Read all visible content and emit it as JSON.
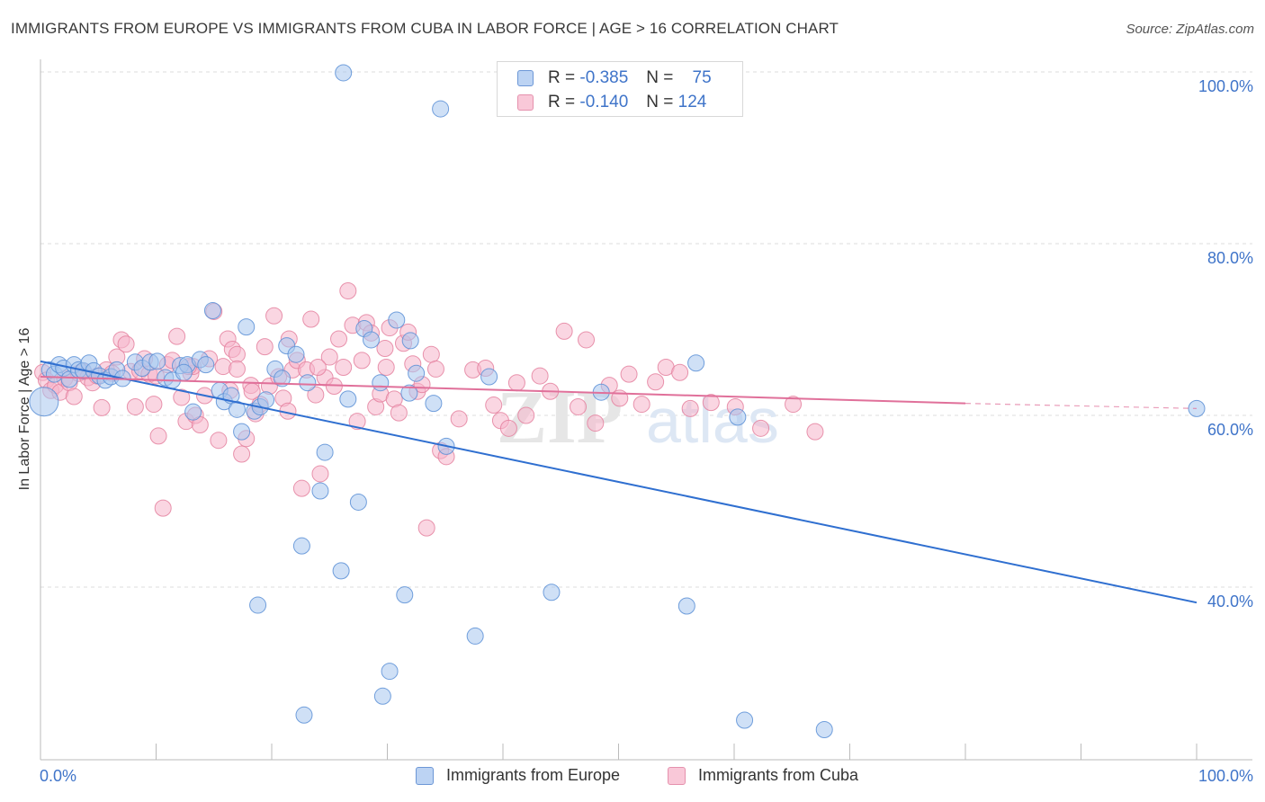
{
  "header": {
    "title": "IMMIGRANTS FROM EUROPE VS IMMIGRANTS FROM CUBA IN LABOR FORCE | AGE > 16 CORRELATION CHART",
    "source": "Source: ZipAtlas.com"
  },
  "watermark": "ZIPatlas",
  "colors": {
    "europe_fill": "#a8c6ef",
    "europe_stroke": "#5b8fd6",
    "europe_line": "#2f6fd0",
    "cuba_fill": "#f6b5cb",
    "cuba_stroke": "#e4819f",
    "cuba_line": "#e0709a",
    "axis_label": "#3f74c9"
  },
  "legend": {
    "rows": [
      {
        "r_label": "R =",
        "r_value": "-0.385",
        "n_label": "N =",
        "n_value": "75"
      },
      {
        "r_label": "R =",
        "r_value": "-0.140",
        "n_label": "N =",
        "n_value": "124"
      }
    ]
  },
  "chart_data": {
    "type": "scatter",
    "title": "IMMIGRANTS FROM EUROPE VS IMMIGRANTS FROM CUBA IN LABOR FORCE | AGE > 16 CORRELATION CHART",
    "xlabel": "",
    "ylabel": "In Labor Force | Age > 16",
    "xlim": [
      0,
      100
    ],
    "ylim": [
      22,
      102
    ],
    "x_tick_labels": [
      "0.0%",
      "100.0%"
    ],
    "y_ticks": [
      40,
      60,
      80,
      100
    ],
    "y_tick_labels": [
      "40.0%",
      "60.0%",
      "80.0%",
      "100.0%"
    ],
    "grid": "horizontal dashed",
    "legend_position": "bottom-center",
    "series": [
      {
        "name": "Immigrants from Europe",
        "R": -0.385,
        "N": 75,
        "trend": {
          "x": [
            0,
            100
          ],
          "y": [
            66.3,
            38.2
          ]
        },
        "points": [
          [
            0.3,
            61.6
          ],
          [
            0.8,
            65.3
          ],
          [
            1.2,
            64.8
          ],
          [
            1.6,
            65.9
          ],
          [
            2.0,
            65.5
          ],
          [
            2.5,
            64.2
          ],
          [
            2.9,
            65.9
          ],
          [
            3.3,
            65.3
          ],
          [
            3.7,
            65.2
          ],
          [
            4.2,
            66.1
          ],
          [
            4.6,
            65.2
          ],
          [
            5.1,
            64.6
          ],
          [
            5.6,
            64.1
          ],
          [
            6.1,
            64.5
          ],
          [
            6.6,
            65.3
          ],
          [
            7.1,
            64.3
          ],
          [
            8.2,
            66.2
          ],
          [
            8.8,
            65.5
          ],
          [
            9.5,
            66.2
          ],
          [
            10.1,
            66.3
          ],
          [
            10.8,
            64.4
          ],
          [
            11.4,
            64.1
          ],
          [
            12.1,
            65.8
          ],
          [
            12.7,
            65.9
          ],
          [
            13.2,
            60.4
          ],
          [
            13.8,
            66.5
          ],
          [
            14.3,
            65.9
          ],
          [
            14.9,
            72.2
          ],
          [
            15.5,
            62.9
          ],
          [
            15.9,
            61.6
          ],
          [
            16.5,
            62.3
          ],
          [
            17.0,
            60.7
          ],
          [
            17.4,
            58.1
          ],
          [
            17.8,
            70.3
          ],
          [
            18.5,
            60.5
          ],
          [
            19.0,
            61.0
          ],
          [
            19.5,
            61.8
          ],
          [
            20.3,
            65.4
          ],
          [
            20.9,
            64.3
          ],
          [
            21.3,
            68.1
          ],
          [
            22.1,
            67.1
          ],
          [
            23.1,
            63.8
          ],
          [
            24.2,
            51.2
          ],
          [
            24.6,
            55.7
          ],
          [
            26.2,
            99.9
          ],
          [
            26.6,
            61.9
          ],
          [
            27.5,
            49.9
          ],
          [
            28.0,
            70.1
          ],
          [
            28.6,
            68.8
          ],
          [
            29.4,
            63.8
          ],
          [
            30.8,
            71.1
          ],
          [
            32.0,
            68.7
          ],
          [
            32.5,
            64.9
          ],
          [
            31.9,
            62.6
          ],
          [
            34.0,
            61.4
          ],
          [
            34.6,
            95.7
          ],
          [
            35.1,
            56.4
          ],
          [
            22.6,
            44.8
          ],
          [
            26.0,
            41.9
          ],
          [
            31.5,
            39.1
          ],
          [
            18.8,
            37.9
          ],
          [
            37.6,
            34.3
          ],
          [
            30.2,
            30.2
          ],
          [
            29.6,
            27.3
          ],
          [
            22.8,
            25.1
          ],
          [
            44.2,
            39.4
          ],
          [
            55.9,
            37.8
          ],
          [
            56.7,
            66.1
          ],
          [
            60.3,
            59.8
          ],
          [
            60.9,
            24.5
          ],
          [
            67.8,
            23.4
          ],
          [
            100.0,
            60.8
          ],
          [
            48.5,
            62.7
          ],
          [
            38.8,
            64.5
          ],
          [
            12.4,
            65.0
          ]
        ]
      },
      {
        "name": "Immigrants from Cuba",
        "R": -0.14,
        "N": 124,
        "trend": {
          "x": [
            0,
            80,
            100
          ],
          "y": [
            64.5,
            61.4,
            60.8
          ]
        },
        "points": [
          [
            0.2,
            65.0
          ],
          [
            0.5,
            64.1
          ],
          [
            0.9,
            62.9
          ],
          [
            1.3,
            63.5
          ],
          [
            1.7,
            62.7
          ],
          [
            2.1,
            64.3
          ],
          [
            2.5,
            63.8
          ],
          [
            2.9,
            62.2
          ],
          [
            3.3,
            64.9
          ],
          [
            3.7,
            65.1
          ],
          [
            4.1,
            64.4
          ],
          [
            4.5,
            63.8
          ],
          [
            4.9,
            64.6
          ],
          [
            5.3,
            60.9
          ],
          [
            5.7,
            65.3
          ],
          [
            6.2,
            64.9
          ],
          [
            6.6,
            66.8
          ],
          [
            7.0,
            68.8
          ],
          [
            7.4,
            68.3
          ],
          [
            7.8,
            65.1
          ],
          [
            8.2,
            61.0
          ],
          [
            8.6,
            65.2
          ],
          [
            9.0,
            66.6
          ],
          [
            9.4,
            64.8
          ],
          [
            9.8,
            61.3
          ],
          [
            10.2,
            57.6
          ],
          [
            10.6,
            49.2
          ],
          [
            11.0,
            65.9
          ],
          [
            11.4,
            66.4
          ],
          [
            11.8,
            69.2
          ],
          [
            12.2,
            62.1
          ],
          [
            12.6,
            59.3
          ],
          [
            13.0,
            64.9
          ],
          [
            13.4,
            60.0
          ],
          [
            13.8,
            58.9
          ],
          [
            14.2,
            62.3
          ],
          [
            14.6,
            66.6
          ],
          [
            15.0,
            72.1
          ],
          [
            15.4,
            57.1
          ],
          [
            15.8,
            65.7
          ],
          [
            16.2,
            68.9
          ],
          [
            16.6,
            67.7
          ],
          [
            17.0,
            67.1
          ],
          [
            17.4,
            55.5
          ],
          [
            17.8,
            57.3
          ],
          [
            18.2,
            63.5
          ],
          [
            18.6,
            60.2
          ],
          [
            19.0,
            61.3
          ],
          [
            19.4,
            68.0
          ],
          [
            19.8,
            63.4
          ],
          [
            20.2,
            71.6
          ],
          [
            20.6,
            64.5
          ],
          [
            21.0,
            62.0
          ],
          [
            21.4,
            60.5
          ],
          [
            21.8,
            65.3
          ],
          [
            22.2,
            66.4
          ],
          [
            22.6,
            51.5
          ],
          [
            23.0,
            65.3
          ],
          [
            23.4,
            71.2
          ],
          [
            23.8,
            62.4
          ],
          [
            24.2,
            53.2
          ],
          [
            24.6,
            64.4
          ],
          [
            25.0,
            66.8
          ],
          [
            25.4,
            63.4
          ],
          [
            25.8,
            68.9
          ],
          [
            26.2,
            65.6
          ],
          [
            26.6,
            74.5
          ],
          [
            27.0,
            70.5
          ],
          [
            27.4,
            59.3
          ],
          [
            27.8,
            66.4
          ],
          [
            28.2,
            70.8
          ],
          [
            28.6,
            69.6
          ],
          [
            29.0,
            61.0
          ],
          [
            29.4,
            62.5
          ],
          [
            29.8,
            67.8
          ],
          [
            30.2,
            70.2
          ],
          [
            30.6,
            61.9
          ],
          [
            31.0,
            60.3
          ],
          [
            31.4,
            68.4
          ],
          [
            31.8,
            69.7
          ],
          [
            32.2,
            66.0
          ],
          [
            32.6,
            62.8
          ],
          [
            33.0,
            63.6
          ],
          [
            33.4,
            46.9
          ],
          [
            33.8,
            67.1
          ],
          [
            34.2,
            65.4
          ],
          [
            34.6,
            55.9
          ],
          [
            35.1,
            55.2
          ],
          [
            36.2,
            59.6
          ],
          [
            37.4,
            65.3
          ],
          [
            38.5,
            65.5
          ],
          [
            39.2,
            61.2
          ],
          [
            39.8,
            59.4
          ],
          [
            40.5,
            58.5
          ],
          [
            41.2,
            63.8
          ],
          [
            42.0,
            60.0
          ],
          [
            43.2,
            64.6
          ],
          [
            44.1,
            62.8
          ],
          [
            45.3,
            69.8
          ],
          [
            46.5,
            61.0
          ],
          [
            47.2,
            68.8
          ],
          [
            48.0,
            59.1
          ],
          [
            49.2,
            63.5
          ],
          [
            50.1,
            62.0
          ],
          [
            50.9,
            64.8
          ],
          [
            52.0,
            61.3
          ],
          [
            53.2,
            63.9
          ],
          [
            54.1,
            65.6
          ],
          [
            55.3,
            65.0
          ],
          [
            56.2,
            60.8
          ],
          [
            58.0,
            61.5
          ],
          [
            60.1,
            61.0
          ],
          [
            62.3,
            58.5
          ],
          [
            65.1,
            61.3
          ],
          [
            67.0,
            58.1
          ],
          [
            17.0,
            65.4
          ],
          [
            16.4,
            62.9
          ],
          [
            10.0,
            64.6
          ],
          [
            13.2,
            65.7
          ],
          [
            12.8,
            65.7
          ],
          [
            18.3,
            62.8
          ],
          [
            21.5,
            68.9
          ],
          [
            24.0,
            65.6
          ],
          [
            29.9,
            65.6
          ]
        ]
      }
    ]
  },
  "bottom_legend": {
    "items": [
      "Immigrants from Europe",
      "Immigrants from Cuba"
    ]
  }
}
